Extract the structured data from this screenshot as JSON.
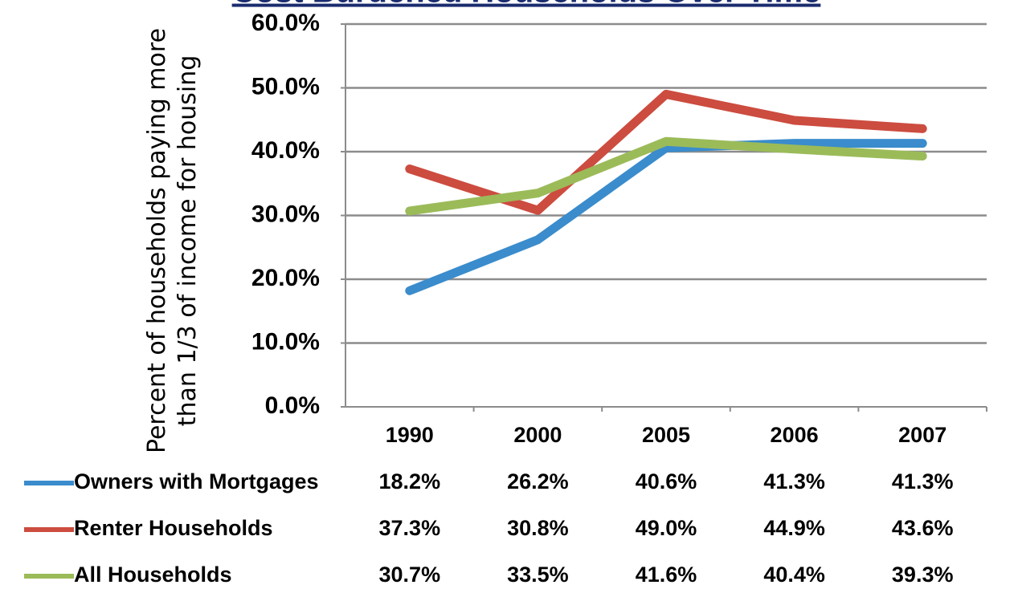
{
  "chart_data": {
    "type": "line",
    "title": "Cost Burdened Households Over Time",
    "y_label": "Percent of households paying more than 1/3 of income for housing",
    "categories": [
      "1990",
      "2000",
      "2005",
      "2006",
      "2007"
    ],
    "series": [
      {
        "name": "Owners with Mortgages",
        "color": "#3a8ccc",
        "values": [
          18.2,
          26.2,
          40.6,
          41.3,
          41.3
        ],
        "value_labels": [
          "18.2%",
          "26.2%",
          "40.6%",
          "41.3%",
          "41.3%"
        ]
      },
      {
        "name": "Renter Households",
        "color": "#cc4c3f",
        "values": [
          37.3,
          30.8,
          49.0,
          44.9,
          43.6
        ],
        "value_labels": [
          "37.3%",
          "30.8%",
          "49.0%",
          "44.9%",
          "43.6%"
        ]
      },
      {
        "name": "All Households",
        "color": "#9bbb59",
        "values": [
          30.7,
          33.5,
          41.6,
          40.4,
          39.3
        ],
        "value_labels": [
          "30.7%",
          "33.5%",
          "41.6%",
          "40.4%",
          "39.3%"
        ]
      }
    ],
    "ylim": [
      0,
      60
    ],
    "yticks": [
      {
        "value": 0,
        "label": "0.0%"
      },
      {
        "value": 10,
        "label": "10.0%"
      },
      {
        "value": 20,
        "label": "20.0%"
      },
      {
        "value": 30,
        "label": "30.0%"
      },
      {
        "value": 40,
        "label": "40.0%"
      },
      {
        "value": 50,
        "label": "50.0%"
      },
      {
        "value": 60,
        "label": "60.0%"
      }
    ],
    "grid": true
  }
}
